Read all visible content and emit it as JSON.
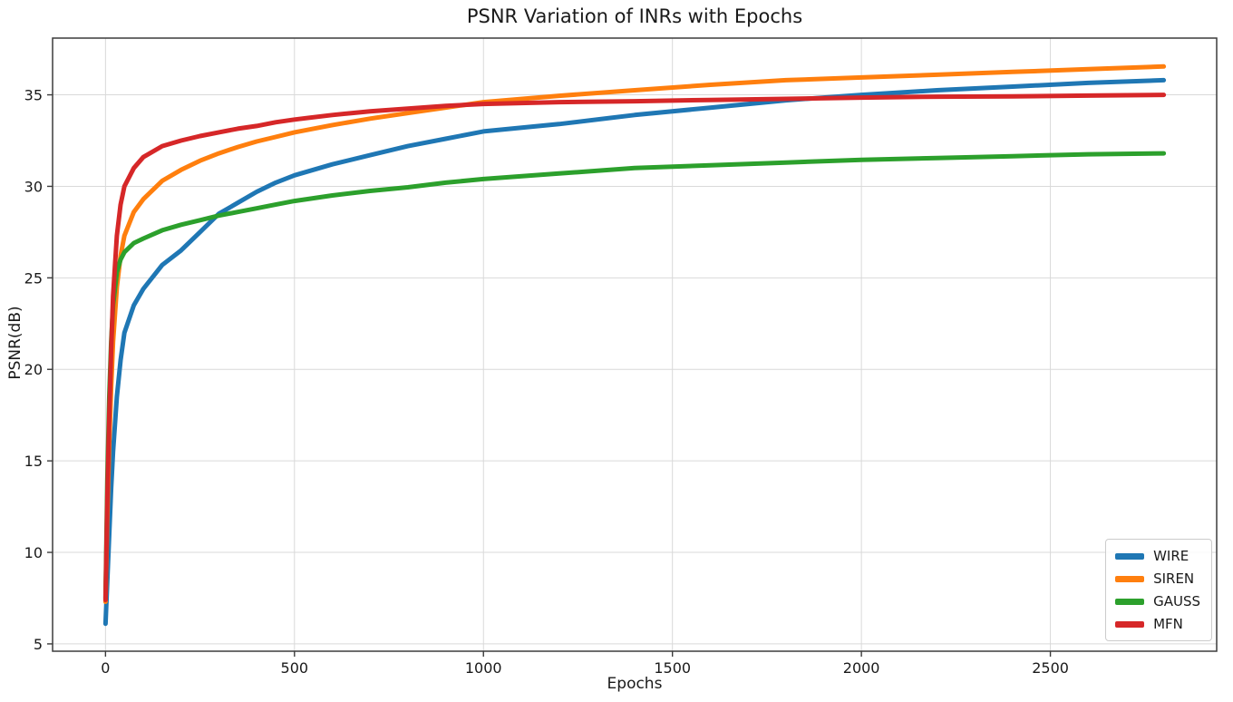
{
  "chart_data": {
    "type": "line",
    "title": "PSNR Variation of INRs with Epochs",
    "xlabel": "Epochs",
    "ylabel": "PSNR(dB)",
    "xlim": [
      -140,
      2940
    ],
    "ylim": [
      4.6,
      38.1
    ],
    "x_ticks": [
      0,
      500,
      1000,
      1500,
      2000,
      2500
    ],
    "y_ticks": [
      5,
      10,
      15,
      20,
      25,
      30,
      35
    ],
    "grid": true,
    "legend_position": "lower right",
    "x": [
      0,
      5,
      10,
      15,
      20,
      30,
      40,
      50,
      75,
      100,
      150,
      200,
      250,
      300,
      350,
      400,
      450,
      500,
      600,
      700,
      800,
      900,
      1000,
      1200,
      1400,
      1600,
      1800,
      2000,
      2200,
      2400,
      2600,
      2800
    ],
    "series": [
      {
        "name": "WIRE",
        "color": "#1f77b4",
        "values": [
          6.1,
          8.5,
          11.0,
          13.5,
          15.5,
          18.5,
          20.5,
          22.0,
          23.5,
          24.4,
          25.7,
          26.5,
          27.5,
          28.5,
          29.1,
          29.7,
          30.2,
          30.6,
          31.2,
          31.7,
          32.2,
          32.6,
          33.0,
          33.4,
          33.9,
          34.3,
          34.7,
          35.0,
          35.25,
          35.45,
          35.65,
          35.8
        ]
      },
      {
        "name": "SIREN",
        "color": "#ff7f0e",
        "values": [
          7.3,
          12.0,
          16.0,
          19.0,
          21.5,
          24.5,
          26.2,
          27.3,
          28.6,
          29.3,
          30.3,
          30.9,
          31.4,
          31.8,
          32.15,
          32.45,
          32.7,
          32.95,
          33.35,
          33.7,
          34.0,
          34.3,
          34.6,
          34.95,
          35.25,
          35.55,
          35.8,
          35.95,
          36.1,
          36.25,
          36.4,
          36.55
        ]
      },
      {
        "name": "GAUSS",
        "color": "#2ca02c",
        "values": [
          7.5,
          14.0,
          18.5,
          21.5,
          23.5,
          25.3,
          26.0,
          26.4,
          26.9,
          27.15,
          27.6,
          27.9,
          28.15,
          28.4,
          28.6,
          28.8,
          29.0,
          29.2,
          29.5,
          29.75,
          29.95,
          30.2,
          30.4,
          30.7,
          31.0,
          31.15,
          31.3,
          31.45,
          31.55,
          31.65,
          31.75,
          31.8
        ]
      },
      {
        "name": "MFN",
        "color": "#d62728",
        "values": [
          7.4,
          13.0,
          17.5,
          21.0,
          24.0,
          27.3,
          29.0,
          30.0,
          31.0,
          31.6,
          32.2,
          32.5,
          32.75,
          32.95,
          33.15,
          33.3,
          33.5,
          33.65,
          33.9,
          34.1,
          34.25,
          34.4,
          34.5,
          34.6,
          34.65,
          34.72,
          34.78,
          34.85,
          34.9,
          34.92,
          34.96,
          35.0
        ]
      }
    ],
    "style": {
      "line_width": 5,
      "grid_color": "#d9d9d9",
      "spine_color": "#3c3c3c",
      "tick_color": "#3c3c3c",
      "text_color": "#1a1a1a",
      "tick_font_size": 16
    }
  }
}
